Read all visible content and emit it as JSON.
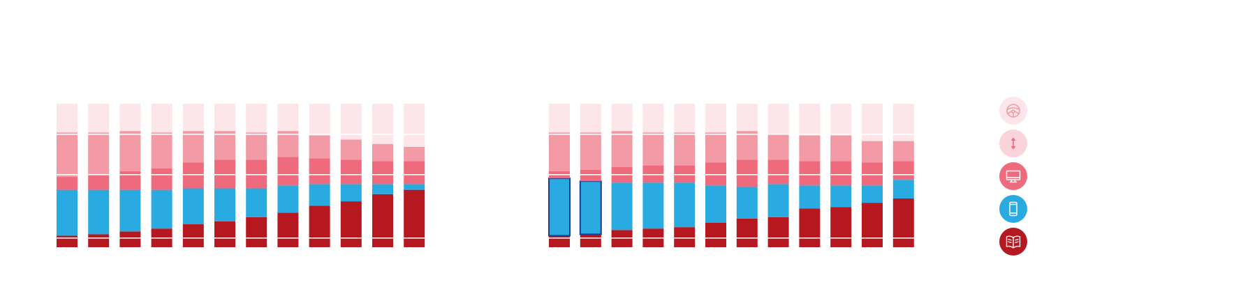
{
  "colors": {
    "car": "#fce6ea",
    "travel": "#f29aa6",
    "tv": "#ee6b7d",
    "mobile": "#29abe2",
    "print": "#b5191f",
    "divider": "#ffffff",
    "outline": "#1b3f8f"
  },
  "legend": [
    {
      "key": "car",
      "icon": "steering-wheel-icon",
      "color": "#fce6ea",
      "glyph": "#f29aa6"
    },
    {
      "key": "travel",
      "icon": "up-down-arrow-icon",
      "color": "#fbd3da",
      "glyph": "#ee6b7d"
    },
    {
      "key": "tv",
      "icon": "monitor-icon",
      "color": "#ee6b7d",
      "glyph": "#ffffff"
    },
    {
      "key": "mobile",
      "icon": "smartphone-icon",
      "color": "#29abe2",
      "glyph": "#ffffff"
    },
    {
      "key": "print",
      "icon": "open-book-icon",
      "color": "#b5191f",
      "glyph": "#ffffff"
    }
  ],
  "chart_data": [
    {
      "type": "bar",
      "stacked": true,
      "categories": [
        "",
        "",
        "",
        "",
        "",
        "",
        "",
        "",
        "",
        "",
        "",
        ""
      ],
      "series": [
        {
          "key": "print",
          "values": [
            8,
            9,
            11,
            13,
            16,
            18,
            21,
            24,
            29,
            32,
            37,
            40
          ]
        },
        {
          "key": "mobile",
          "values": [
            32,
            31,
            29,
            27,
            25,
            23,
            20,
            19,
            15,
            12,
            7,
            4
          ]
        },
        {
          "key": "tv",
          "values": [
            9,
            11,
            13,
            15,
            18,
            20,
            20,
            20,
            18,
            17,
            16,
            16
          ]
        },
        {
          "key": "travel",
          "values": [
            31,
            29,
            28,
            25,
            22,
            20,
            19,
            18,
            16,
            14,
            12,
            10
          ]
        },
        {
          "key": "car",
          "values": [
            20,
            20,
            19,
            20,
            19,
            19,
            20,
            19,
            22,
            25,
            28,
            30
          ]
        }
      ]
    },
    {
      "type": "bar",
      "stacked": true,
      "categories": [
        "",
        "",
        "",
        "",
        "",
        "",
        "",
        "",
        "",
        "",
        "",
        ""
      ],
      "series": [
        {
          "key": "print",
          "values": [
            8,
            9,
            12,
            13,
            14,
            17,
            20,
            21,
            27,
            28,
            31,
            34
          ]
        },
        {
          "key": "mobile",
          "values": [
            40,
            37,
            33,
            32,
            31,
            26,
            22,
            23,
            16,
            15,
            12,
            13
          ]
        },
        {
          "key": "tv",
          "values": [
            5,
            8,
            11,
            12,
            12,
            16,
            19,
            17,
            17,
            17,
            16,
            13
          ]
        },
        {
          "key": "travel",
          "values": [
            27,
            26,
            25,
            23,
            23,
            21,
            20,
            18,
            18,
            18,
            15,
            14
          ]
        },
        {
          "key": "car",
          "values": [
            20,
            20,
            19,
            20,
            20,
            20,
            19,
            21,
            22,
            22,
            26,
            26
          ]
        }
      ],
      "outlined": [
        0,
        1
      ]
    }
  ]
}
